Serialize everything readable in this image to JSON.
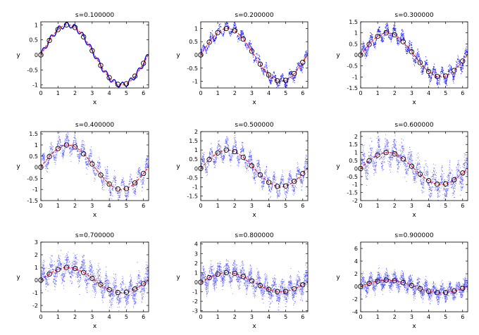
{
  "chart_data": [
    {
      "type": "scatter",
      "title": "s=0.100000",
      "xlabel": "x",
      "ylabel": "y",
      "xlim": [
        0,
        6.3
      ],
      "ylim": [
        -1.1,
        1.1
      ],
      "yticks": [
        -1,
        -0.5,
        0,
        0.5,
        1
      ],
      "xticks": [
        0,
        1,
        2,
        3,
        4,
        5,
        6
      ],
      "noise_s": 0.1
    },
    {
      "type": "scatter",
      "title": "s=0.200000",
      "xlabel": "x",
      "ylabel": "y",
      "xlim": [
        0,
        6.3
      ],
      "ylim": [
        -1.25,
        1.25
      ],
      "yticks": [
        -1,
        -0.5,
        0,
        0.5,
        1
      ],
      "xticks": [
        0,
        1,
        2,
        3,
        4,
        5,
        6
      ],
      "noise_s": 0.2
    },
    {
      "type": "scatter",
      "title": "s=0.300000",
      "xlabel": "x",
      "ylabel": "y",
      "xlim": [
        0,
        6.3
      ],
      "ylim": [
        -1.5,
        1.5
      ],
      "yticks": [
        -1.5,
        -1,
        -0.5,
        0,
        0.5,
        1,
        1.5
      ],
      "xticks": [
        0,
        1,
        2,
        3,
        4,
        5,
        6
      ],
      "noise_s": 0.3
    },
    {
      "type": "scatter",
      "title": "s=0.400000",
      "xlabel": "x",
      "ylabel": "y",
      "xlim": [
        0,
        6.3
      ],
      "ylim": [
        -1.5,
        1.6
      ],
      "yticks": [
        -1.5,
        -1,
        -0.5,
        0,
        0.5,
        1,
        1.5
      ],
      "xticks": [
        0,
        1,
        2,
        3,
        4,
        5,
        6
      ],
      "noise_s": 0.4
    },
    {
      "type": "scatter",
      "title": "s=0.500000",
      "xlabel": "x",
      "ylabel": "y",
      "xlim": [
        0,
        6.3
      ],
      "ylim": [
        -1.75,
        2
      ],
      "yticks": [
        -1.5,
        -1,
        -0.5,
        0,
        0.5,
        1,
        1.5,
        2
      ],
      "xticks": [
        0,
        1,
        2,
        3,
        4,
        5,
        6
      ],
      "noise_s": 0.5
    },
    {
      "type": "scatter",
      "title": "s=0.600000",
      "xlabel": "x",
      "ylabel": "y",
      "xlim": [
        0,
        6.3
      ],
      "ylim": [
        -2,
        2.3
      ],
      "yticks": [
        -2,
        -1.5,
        -1,
        -0.5,
        0,
        0.5,
        1,
        1.5,
        2
      ],
      "xticks": [
        0,
        1,
        2,
        3,
        4,
        5,
        6
      ],
      "noise_s": 0.6
    },
    {
      "type": "scatter",
      "title": "s=0.700000",
      "xlabel": "x",
      "ylabel": "y",
      "xlim": [
        0,
        6.3
      ],
      "ylim": [
        -2.5,
        3
      ],
      "yticks": [
        -2,
        -1,
        0,
        1,
        2,
        3
      ],
      "xticks": [
        0,
        1,
        2,
        3,
        4,
        5,
        6
      ],
      "noise_s": 0.7
    },
    {
      "type": "scatter",
      "title": "s=0.800000",
      "xlabel": "x",
      "ylabel": "y",
      "xlim": [
        0,
        6.3
      ],
      "ylim": [
        -3.1,
        4.2
      ],
      "yticks": [
        -3,
        -2,
        -1,
        0,
        1,
        2,
        3,
        4
      ],
      "xticks": [
        0,
        1,
        2,
        3,
        4,
        5,
        6
      ],
      "noise_s": 0.8
    },
    {
      "type": "scatter",
      "title": "s=0.900000",
      "xlabel": "x",
      "ylabel": "y",
      "xlim": [
        0,
        6.3
      ],
      "ylim": [
        -4,
        7
      ],
      "yticks": [
        -4,
        -2,
        0,
        2,
        4,
        6
      ],
      "xticks": [
        0,
        1,
        2,
        3,
        4,
        5,
        6
      ],
      "noise_s": 0.9
    }
  ],
  "series_style": {
    "noisy_color": "#0000ff",
    "truth_color": "#ff0000",
    "sample_color": "#000000"
  },
  "sample_points_x": [
    0,
    0.5,
    1.0,
    1.5,
    2.0,
    2.5,
    3.0,
    3.5,
    4.0,
    4.5,
    5.0,
    5.5,
    6.0
  ]
}
